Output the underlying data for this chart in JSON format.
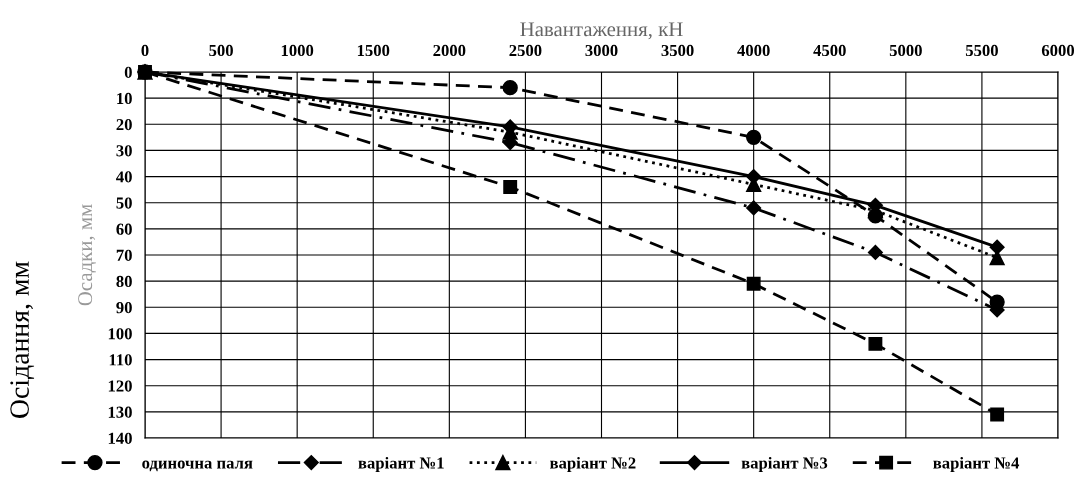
{
  "chart_data": {
    "type": "line",
    "xlabel": "Навантаження, кН",
    "ylabel": "Осадки, мм",
    "annotations": [
      "Осідання, мм"
    ],
    "x": [
      0,
      2400,
      4000,
      4800,
      5600
    ],
    "xlim": [
      0,
      6000
    ],
    "xticks": [
      0,
      500,
      1000,
      1500,
      2000,
      2500,
      3000,
      3500,
      4000,
      4500,
      5000,
      5500,
      6000
    ],
    "ylim": [
      140,
      0
    ],
    "yticks": [
      0,
      10,
      20,
      30,
      40,
      50,
      60,
      70,
      80,
      90,
      100,
      110,
      120,
      130,
      140
    ],
    "grid": true,
    "legend": "bottom",
    "series": [
      {
        "name": "одиночна паля",
        "color": "#000000",
        "marker": "circle",
        "line_style": "dashed",
        "values": [
          0,
          6,
          25,
          55,
          88
        ]
      },
      {
        "name": "варіант №1",
        "color": "#000000",
        "marker": "diamond",
        "line_style": "dashdot",
        "values": [
          0,
          27,
          52,
          69,
          91
        ]
      },
      {
        "name": "варіант №2",
        "color": "#000000",
        "marker": "triangle",
        "line_style": "dotted",
        "values": [
          0,
          23,
          43,
          53,
          71
        ]
      },
      {
        "name": "варіант №3",
        "color": "#000000",
        "marker": "diamond",
        "line_style": "solid",
        "values": [
          0,
          21,
          40,
          51,
          67
        ]
      },
      {
        "name": "варіант №4",
        "color": "#000000",
        "marker": "square",
        "line_style": "dashed",
        "values": [
          0,
          44,
          81,
          104,
          131
        ]
      }
    ]
  }
}
